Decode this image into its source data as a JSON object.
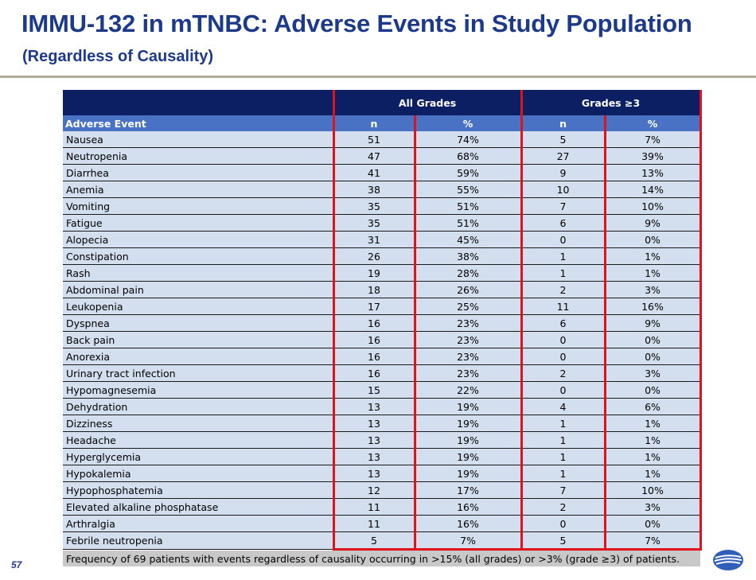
{
  "header": {
    "title": "IMMU-132 in mTNBC:  Adverse Events in Study Population",
    "subtitle": "(Regardless of Causality)"
  },
  "table": {
    "group_headers": [
      "All Grades",
      "Grades ≥3"
    ],
    "columns": [
      "Adverse Event",
      "n",
      "%",
      "n",
      "%"
    ],
    "rows": [
      [
        "Nausea",
        "51",
        "74%",
        "5",
        "7%"
      ],
      [
        "Neutropenia",
        "47",
        "68%",
        "27",
        "39%"
      ],
      [
        "Diarrhea",
        "41",
        "59%",
        "9",
        "13%"
      ],
      [
        "Anemia",
        "38",
        "55%",
        "10",
        "14%"
      ],
      [
        "Vomiting",
        "35",
        "51%",
        "7",
        "10%"
      ],
      [
        "Fatigue",
        "35",
        "51%",
        "6",
        "9%"
      ],
      [
        "Alopecia",
        "31",
        "45%",
        "0",
        "0%"
      ],
      [
        "Constipation",
        "26",
        "38%",
        "1",
        "1%"
      ],
      [
        "Rash",
        "19",
        "28%",
        "1",
        "1%"
      ],
      [
        "Abdominal pain",
        "18",
        "26%",
        "2",
        "3%"
      ],
      [
        "Leukopenia",
        "17",
        "25%",
        "11",
        "16%"
      ],
      [
        "Dyspnea",
        "16",
        "23%",
        "6",
        "9%"
      ],
      [
        "Back pain",
        "16",
        "23%",
        "0",
        "0%"
      ],
      [
        "Anorexia",
        "16",
        "23%",
        "0",
        "0%"
      ],
      [
        "Urinary tract infection",
        "16",
        "23%",
        "2",
        "3%"
      ],
      [
        "Hypomagnesemia",
        "15",
        "22%",
        "0",
        "0%"
      ],
      [
        "Dehydration",
        "13",
        "19%",
        "4",
        "6%"
      ],
      [
        "Dizziness",
        "13",
        "19%",
        "1",
        "1%"
      ],
      [
        "Headache",
        "13",
        "19%",
        "1",
        "1%"
      ],
      [
        "Hyperglycemia",
        "13",
        "19%",
        "1",
        "1%"
      ],
      [
        "Hypokalemia",
        "13",
        "19%",
        "1",
        "1%"
      ],
      [
        "Hypophosphatemia",
        "12",
        "17%",
        "7",
        "10%"
      ],
      [
        "Elevated alkaline phosphatase",
        "11",
        "16%",
        "2",
        "3%"
      ],
      [
        "Arthralgia",
        "11",
        "16%",
        "0",
        "0%"
      ],
      [
        "Febrile neutropenia",
        "5",
        "7%",
        "5",
        "7%"
      ]
    ],
    "footnote": "Frequency of 69 patients with events regardless of causality occurring in >15% (all grades) or >3% (grade ≥3) of patients."
  },
  "footer": {
    "page_number": "57"
  },
  "colors": {
    "title": "#1d3a8a",
    "group_header_bg": "#0d1f63",
    "column_header_bg": "#4a72c4",
    "row_bg": "#d3deef",
    "highlight_border": "#e0121a",
    "footnote_bg": "#c8c8c8"
  }
}
